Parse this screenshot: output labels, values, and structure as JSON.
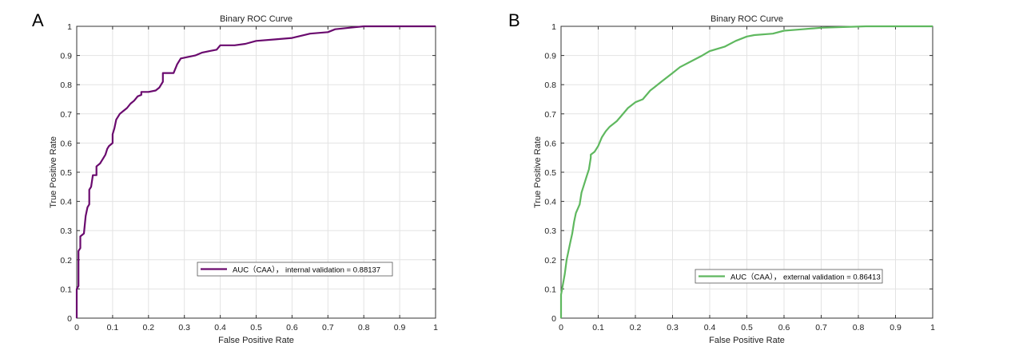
{
  "chart_data": [
    {
      "panel_label": "A",
      "type": "line",
      "title": "Binary ROC Curve",
      "xlabel": "False Positive Rate",
      "ylabel": "True Positive Rate",
      "xlim": [
        0,
        1
      ],
      "ylim": [
        0,
        1
      ],
      "xticks": [
        "0",
        "0.1",
        "0.2",
        "0.3",
        "0.4",
        "0.5",
        "0.6",
        "0.7",
        "0.8",
        "0.9",
        "1"
      ],
      "yticks": [
        "0",
        "0.1",
        "0.2",
        "0.3",
        "0.4",
        "0.5",
        "0.6",
        "0.7",
        "0.8",
        "0.9",
        "1"
      ],
      "grid": true,
      "legend_placement": "center-right",
      "series": [
        {
          "name": "AUC（CAA）， internal validation = 0.88137",
          "color": "#6a0a6e",
          "x": [
            0,
            0,
            0.005,
            0.005,
            0.01,
            0.01,
            0.02,
            0.025,
            0.03,
            0.035,
            0.035,
            0.04,
            0.045,
            0.055,
            0.055,
            0.065,
            0.075,
            0.08,
            0.085,
            0.09,
            0.1,
            0.1,
            0.105,
            0.11,
            0.12,
            0.13,
            0.14,
            0.15,
            0.16,
            0.17,
            0.18,
            0.18,
            0.2,
            0.22,
            0.23,
            0.24,
            0.24,
            0.27,
            0.28,
            0.29,
            0.31,
            0.33,
            0.35,
            0.37,
            0.39,
            0.4,
            0.44,
            0.47,
            0.5,
            0.55,
            0.6,
            0.65,
            0.7,
            0.72,
            0.76,
            0.8,
            1
          ],
          "y": [
            0,
            0.1,
            0.11,
            0.23,
            0.24,
            0.28,
            0.29,
            0.35,
            0.38,
            0.39,
            0.44,
            0.45,
            0.49,
            0.49,
            0.52,
            0.53,
            0.55,
            0.56,
            0.58,
            0.59,
            0.6,
            0.63,
            0.65,
            0.68,
            0.7,
            0.71,
            0.72,
            0.735,
            0.745,
            0.76,
            0.765,
            0.775,
            0.775,
            0.78,
            0.79,
            0.81,
            0.84,
            0.84,
            0.87,
            0.89,
            0.895,
            0.9,
            0.91,
            0.915,
            0.92,
            0.935,
            0.935,
            0.94,
            0.95,
            0.955,
            0.96,
            0.975,
            0.98,
            0.99,
            0.995,
            1,
            1
          ]
        }
      ]
    },
    {
      "panel_label": "B",
      "type": "line",
      "title": "Binary ROC Curve",
      "xlabel": "False Positive Rate",
      "ylabel": "True Positive Rate",
      "xlim": [
        0,
        1
      ],
      "ylim": [
        0,
        1
      ],
      "xticks": [
        "0",
        "0.1",
        "0.2",
        "0.3",
        "0.4",
        "0.5",
        "0.6",
        "0.7",
        "0.8",
        "0.9",
        "1"
      ],
      "yticks": [
        "0",
        "0.1",
        "0.2",
        "0.3",
        "0.4",
        "0.5",
        "0.6",
        "0.7",
        "0.8",
        "0.9",
        "1"
      ],
      "grid": true,
      "legend_placement": "center-right",
      "series": [
        {
          "name": "AUC（CAA）， external validation = 0.86413",
          "color": "#5fb85f",
          "x": [
            0,
            0,
            0.01,
            0.015,
            0.02,
            0.025,
            0.03,
            0.035,
            0.04,
            0.05,
            0.055,
            0.06,
            0.07,
            0.075,
            0.08,
            0.08,
            0.09,
            0.1,
            0.11,
            0.12,
            0.13,
            0.15,
            0.16,
            0.18,
            0.2,
            0.22,
            0.24,
            0.25,
            0.27,
            0.3,
            0.32,
            0.35,
            0.38,
            0.4,
            0.44,
            0.47,
            0.5,
            0.52,
            0.57,
            0.6,
            0.65,
            0.7,
            0.82,
            1
          ],
          "y": [
            0,
            0.08,
            0.15,
            0.2,
            0.23,
            0.26,
            0.29,
            0.33,
            0.36,
            0.39,
            0.43,
            0.45,
            0.49,
            0.51,
            0.55,
            0.56,
            0.57,
            0.59,
            0.62,
            0.64,
            0.655,
            0.675,
            0.69,
            0.72,
            0.74,
            0.75,
            0.78,
            0.79,
            0.81,
            0.84,
            0.86,
            0.88,
            0.9,
            0.915,
            0.93,
            0.95,
            0.965,
            0.97,
            0.975,
            0.985,
            0.99,
            0.995,
            1,
            1
          ]
        }
      ]
    }
  ]
}
